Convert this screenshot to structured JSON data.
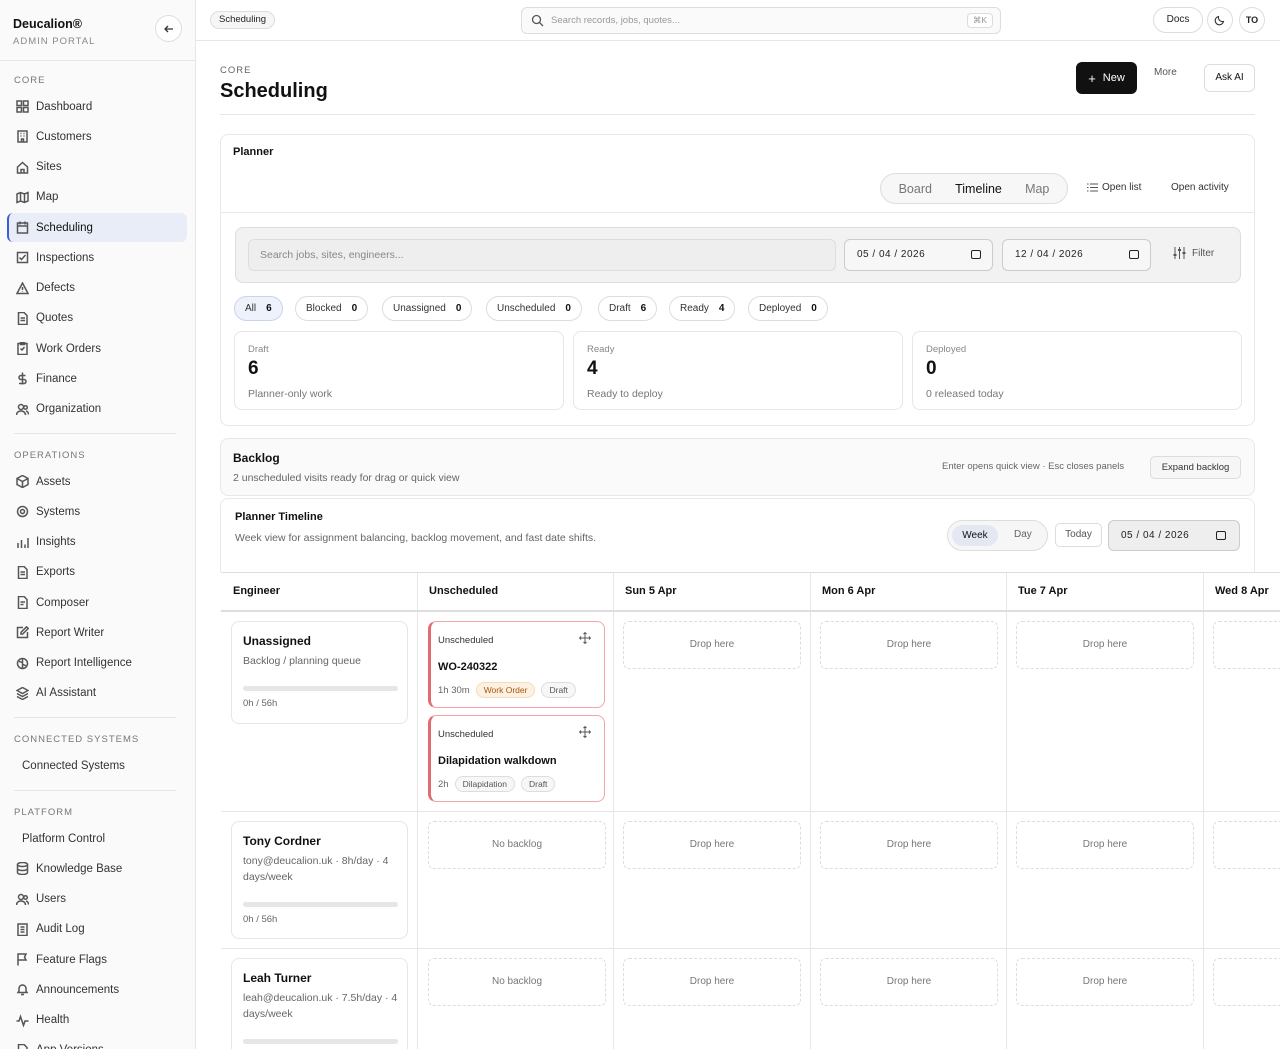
{
  "brand": {
    "name": "Deucalion®",
    "subtitle": "ADMIN PORTAL"
  },
  "sidebar": {
    "core_label": "CORE",
    "core_items": [
      {
        "label": "Dashboard",
        "icon": "grid-icon"
      },
      {
        "label": "Customers",
        "icon": "building-icon"
      },
      {
        "label": "Sites",
        "icon": "home-icon"
      },
      {
        "label": "Map",
        "icon": "map-icon"
      },
      {
        "label": "Scheduling",
        "icon": "calendar-icon",
        "active": true
      },
      {
        "label": "Inspections",
        "icon": "checklist-icon"
      },
      {
        "label": "Defects",
        "icon": "warning-icon"
      },
      {
        "label": "Quotes",
        "icon": "document-icon"
      },
      {
        "label": "Work Orders",
        "icon": "clipboard-icon"
      },
      {
        "label": "Finance",
        "icon": "dollar-icon"
      },
      {
        "label": "Organization",
        "icon": "users-icon"
      }
    ],
    "operations_label": "OPERATIONS",
    "operations_items": [
      {
        "label": "Assets",
        "icon": "box-icon"
      },
      {
        "label": "Systems",
        "icon": "gear-icon"
      },
      {
        "label": "Insights",
        "icon": "bar-chart-icon"
      },
      {
        "label": "Exports",
        "icon": "file-export-icon"
      },
      {
        "label": "Composer",
        "icon": "file-edit-icon"
      },
      {
        "label": "Report Writer",
        "icon": "pencil-square-icon"
      },
      {
        "label": "Report Intelligence",
        "icon": "brain-icon"
      },
      {
        "label": "AI Assistant",
        "icon": "layers-icon"
      }
    ],
    "connected_label": "CONNECTED SYSTEMS",
    "connected_items": [
      {
        "label": "Connected Systems"
      }
    ],
    "platform_label": "PLATFORM",
    "platform_items": [
      {
        "label": "Platform Control",
        "icon": ""
      },
      {
        "label": "Knowledge Base",
        "icon": "database-icon"
      },
      {
        "label": "Users",
        "icon": "users-icon"
      },
      {
        "label": "Audit Log",
        "icon": "clipboard-list-icon"
      },
      {
        "label": "Feature Flags",
        "icon": "flag-icon"
      },
      {
        "label": "Announcements",
        "icon": "bell-icon"
      },
      {
        "label": "Health",
        "icon": "pulse-icon"
      },
      {
        "label": "App Versions",
        "icon": "document-icon"
      }
    ]
  },
  "topbar": {
    "breadcrumb": "Scheduling",
    "search_placeholder": "Search records, jobs, quotes...",
    "shortcut": "⌘K",
    "docs": "Docs",
    "avatar": "TO"
  },
  "page": {
    "section": "CORE",
    "title": "Scheduling",
    "new_label": "New",
    "more_label": "More",
    "ask_ai_label": "Ask AI"
  },
  "planner": {
    "title": "Planner",
    "views": [
      "Board",
      "Timeline",
      "Map"
    ],
    "active_view": "Timeline",
    "open_list": "Open list",
    "open_activity": "Open activity",
    "search_placeholder": "Search jobs, sites, engineers...",
    "date_from": "05 / 04 / 2026",
    "date_to": "12 / 04 / 2026",
    "filter_label": "Filter",
    "pills": [
      {
        "label": "All",
        "count": "6",
        "active": true
      },
      {
        "label": "Blocked",
        "count": "0"
      },
      {
        "label": "Unassigned",
        "count": "0"
      },
      {
        "label": "Unscheduled",
        "count": "0"
      },
      {
        "label": "Draft",
        "count": "6"
      },
      {
        "label": "Ready",
        "count": "4"
      },
      {
        "label": "Deployed",
        "count": "0"
      }
    ],
    "stats": [
      {
        "label": "Draft",
        "value": "6",
        "desc": "Planner-only work"
      },
      {
        "label": "Ready",
        "value": "4",
        "desc": "Ready to deploy"
      },
      {
        "label": "Deployed",
        "value": "0",
        "desc": "0 released today"
      }
    ]
  },
  "backlog": {
    "title": "Backlog",
    "subtitle": "2 unscheduled visits ready for drag or quick view",
    "hint": "Enter opens quick view · Esc closes panels",
    "expand_label": "Expand backlog"
  },
  "timeline": {
    "title": "Planner Timeline",
    "subtitle": "Week view for assignment balancing, backlog movement, and fast date shifts.",
    "week_label": "Week",
    "day_label": "Day",
    "today_label": "Today",
    "date": "05 / 04 / 2026",
    "columns": [
      "Engineer",
      "Unscheduled",
      "Sun 5 Apr",
      "Mon 6 Apr",
      "Tue 7 Apr",
      "Wed 8 Apr"
    ],
    "drop_label": "Drop here",
    "no_backlog_label": "No backlog",
    "rows": [
      {
        "name": "Unassigned",
        "sub": "Backlog / planning queue",
        "hours": "0h / 56h",
        "load": 0
      },
      {
        "name": "Tony Cordner",
        "sub": "tony@deucalion.uk · 8h/day · 4 days/week",
        "hours": "0h / 56h",
        "load": 0
      },
      {
        "name": "Leah Turner",
        "sub": "leah@deucalion.uk · 7.5h/day · 4 days/week",
        "hours": "0h / 56h",
        "load": 0
      }
    ],
    "jobs": [
      {
        "status": "Unscheduled",
        "name": "WO-240322",
        "duration": "1h 30m",
        "type": "Work Order",
        "state": "Draft"
      },
      {
        "status": "Unscheduled",
        "name": "Dilapidation walkdown",
        "duration": "2h",
        "type": "Dilapidation",
        "state": "Draft"
      }
    ]
  }
}
